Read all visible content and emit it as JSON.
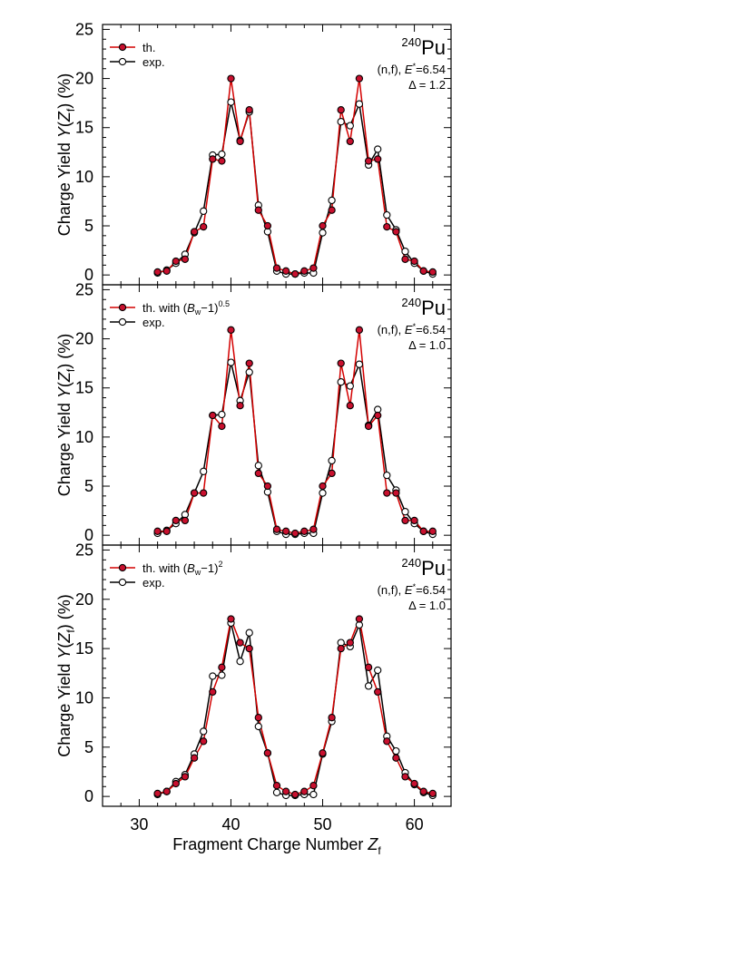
{
  "colors": {
    "theory": "#d40000",
    "theory_marker": "#c8102e",
    "experiment": "#000000",
    "frame": "#000000"
  },
  "chart_data": [
    {
      "type": "line",
      "xlim": [
        26,
        64
      ],
      "ylim": [
        -1,
        25.5
      ],
      "xticks": [
        30,
        40,
        50,
        60
      ],
      "yticks": [
        0,
        5,
        10,
        15,
        20,
        25
      ],
      "ylabel_prefix": "Charge Yield ",
      "ylabel_italic": "Y",
      "ylabel_paren_open": "(",
      "ylabel_var": "Z",
      "ylabel_sub": "f",
      "ylabel_suffix": ") (%)",
      "legend": {
        "theory_label": "th.",
        "experiment_label": "exp.",
        "theory_label_suffix": "",
        "theory_label_var": "",
        "theory_label_var_sub": "",
        "theory_label_tail": "",
        "theory_label_sup": ""
      },
      "nucleus_mass": "240",
      "nucleus_symbol": "Pu",
      "reaction_prefix": "(n,f), ",
      "energy_var": "E",
      "energy_sup": "*",
      "energy_value": "=6.54",
      "delta_label": "Δ = 1.2",
      "x": [
        32,
        33,
        34,
        35,
        36,
        37,
        38,
        39,
        40,
        41,
        42,
        43,
        44,
        45,
        46,
        47,
        48,
        49,
        50,
        51,
        52,
        53,
        54,
        55,
        56,
        57,
        58,
        59,
        60,
        61,
        62
      ],
      "series": [
        {
          "name": "th.",
          "values": [
            0.3,
            0.4,
            1.4,
            1.6,
            4.4,
            4.9,
            11.8,
            11.6,
            20.0,
            13.6,
            16.8,
            6.6,
            5.0,
            0.7,
            0.4,
            0.1,
            0.4,
            0.7,
            5.0,
            6.6,
            16.8,
            13.6,
            20.0,
            11.6,
            11.8,
            4.9,
            4.4,
            1.6,
            1.4,
            0.4,
            0.3
          ]
        },
        {
          "name": "exp.",
          "values": [
            0.2,
            0.5,
            1.2,
            2.1,
            4.3,
            6.5,
            12.2,
            12.3,
            17.6,
            13.7,
            16.6,
            7.1,
            4.4,
            0.4,
            0.1,
            0.1,
            0.2,
            0.2,
            4.3,
            7.6,
            15.6,
            15.2,
            17.4,
            11.2,
            12.8,
            6.1,
            4.6,
            2.4,
            1.2,
            0.4,
            0.1
          ]
        }
      ]
    },
    {
      "type": "line",
      "xlim": [
        26,
        64
      ],
      "ylim": [
        -1,
        25.5
      ],
      "xticks": [
        30,
        40,
        50,
        60
      ],
      "yticks": [
        0,
        5,
        10,
        15,
        20,
        25
      ],
      "ylabel_prefix": "Charge Yield ",
      "ylabel_italic": "Y",
      "ylabel_paren_open": "(",
      "ylabel_var": "Z",
      "ylabel_sub": "f",
      "ylabel_suffix": ") (%)",
      "legend": {
        "theory_label": "th. with (",
        "experiment_label": "exp.",
        "theory_label_var": "B",
        "theory_label_var_sub": "w",
        "theory_label_tail": "−1)",
        "theory_label_sup": "0.5"
      },
      "nucleus_mass": "240",
      "nucleus_symbol": "Pu",
      "reaction_prefix": "(n,f), ",
      "energy_var": "E",
      "energy_sup": "*",
      "energy_value": "=6.54",
      "delta_label": "Δ = 1.0",
      "x": [
        32,
        33,
        34,
        35,
        36,
        37,
        38,
        39,
        40,
        41,
        42,
        43,
        44,
        45,
        46,
        47,
        48,
        49,
        50,
        51,
        52,
        53,
        54,
        55,
        56,
        57,
        58,
        59,
        60,
        61,
        62
      ],
      "series": [
        {
          "name": "th. with (Bw−1)^0.5",
          "values": [
            0.4,
            0.4,
            1.5,
            1.5,
            4.3,
            4.3,
            12.2,
            11.1,
            20.9,
            13.2,
            17.5,
            6.3,
            5.0,
            0.6,
            0.4,
            0.2,
            0.4,
            0.6,
            5.0,
            6.3,
            17.5,
            13.2,
            20.9,
            11.1,
            12.2,
            4.3,
            4.3,
            1.5,
            1.5,
            0.4,
            0.4
          ]
        },
        {
          "name": "exp.",
          "values": [
            0.2,
            0.5,
            1.2,
            2.1,
            4.3,
            6.5,
            12.2,
            12.3,
            17.6,
            13.7,
            16.6,
            7.1,
            4.4,
            0.4,
            0.1,
            0.1,
            0.2,
            0.2,
            4.3,
            7.6,
            15.6,
            15.2,
            17.4,
            11.2,
            12.8,
            6.1,
            4.6,
            2.4,
            1.2,
            0.4,
            0.1
          ]
        }
      ]
    },
    {
      "type": "line",
      "xlim": [
        26,
        64
      ],
      "ylim": [
        -1,
        25.5
      ],
      "xticks": [
        30,
        40,
        50,
        60
      ],
      "yticks": [
        0,
        5,
        10,
        15,
        20,
        25
      ],
      "ylabel_prefix": "Charge Yield ",
      "ylabel_italic": "Y",
      "ylabel_paren_open": "(",
      "ylabel_var": "Z",
      "ylabel_sub": "f",
      "ylabel_suffix": ") (%)",
      "legend": {
        "theory_label": "th. with (",
        "experiment_label": "exp.",
        "theory_label_var": "B",
        "theory_label_var_sub": "w",
        "theory_label_tail": "−1)",
        "theory_label_sup": "2"
      },
      "nucleus_mass": "240",
      "nucleus_symbol": "Pu",
      "reaction_prefix": "(n,f), ",
      "energy_var": "E",
      "energy_sup": "*",
      "energy_value": "=6.54",
      "delta_label": "Δ = 1.0",
      "xlabel_prefix": "Fragment Charge Number ",
      "xlabel_var": "Z",
      "xlabel_sub": "f",
      "x": [
        32,
        33,
        34,
        35,
        36,
        37,
        38,
        39,
        40,
        41,
        42,
        43,
        44,
        45,
        46,
        47,
        48,
        49,
        50,
        51,
        52,
        53,
        54,
        55,
        56,
        57,
        58,
        59,
        60,
        61,
        62
      ],
      "series": [
        {
          "name": "th. with (Bw−1)^2",
          "values": [
            0.3,
            0.5,
            1.3,
            2.0,
            3.9,
            5.6,
            10.6,
            13.1,
            18.0,
            15.6,
            15.0,
            8.0,
            4.4,
            1.1,
            0.5,
            0.2,
            0.5,
            1.1,
            4.4,
            8.0,
            15.0,
            15.6,
            18.0,
            13.1,
            10.6,
            5.6,
            3.9,
            2.0,
            1.3,
            0.5,
            0.3
          ]
        },
        {
          "name": "exp.",
          "values": [
            0.2,
            0.5,
            1.5,
            2.2,
            4.3,
            6.6,
            12.2,
            12.3,
            17.6,
            13.7,
            16.6,
            7.1,
            4.4,
            0.4,
            0.1,
            0.1,
            0.2,
            0.2,
            4.3,
            7.6,
            15.6,
            15.2,
            17.4,
            11.2,
            12.8,
            6.1,
            4.6,
            2.4,
            1.2,
            0.4,
            0.1
          ]
        }
      ]
    }
  ]
}
